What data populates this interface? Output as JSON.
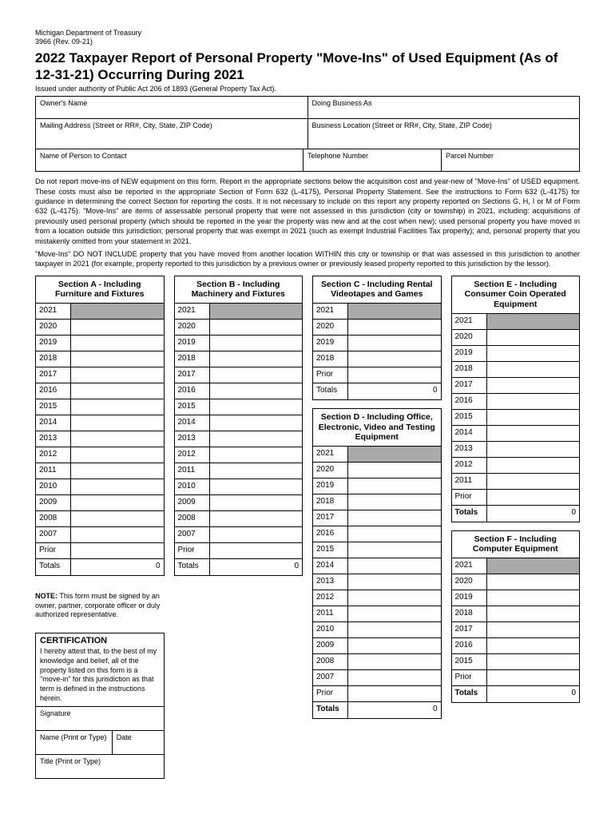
{
  "header": {
    "agency": "Michigan Department of Treasury",
    "form_ref": "3966 (Rev. 09-21)",
    "title": "2022 Taxpayer Report of Personal Property \"Move-Ins\" of Used Equipment (As of 12-31-21) Occurring During 2021",
    "issued": "Issued under authority of Public Act 206 of 1893 (General Property Tax Act)."
  },
  "info": {
    "owner_label": "Owner's Name",
    "dba_label": "Doing Business As",
    "mailing_label": "Mailing Address (Street or RR#, City, State, ZIP Code)",
    "business_loc_label": "Business Location (Street or RR#, City, State, ZIP Code)",
    "contact_label": "Name of Person to Contact",
    "phone_label": "Telephone Number",
    "parcel_label": "Parcel Number"
  },
  "instructions": {
    "p1": "Do not report move-ins of NEW equipment on this form. Report in the appropriate sections below the acquisition cost and year-new of \"Move-Ins\" of USED equipment. These costs must also be reported in the appropriate Section of Form 632 (L-4175), Personal Property Statement. See the instructions to Form 632 (L-4175) for guidance in determining the correct Section for reporting the costs. It is not necessary to include on this report any property reported on Sections G, H, I or M of Form 632 (L-4175). \"Move-Ins\" are items of assessable personal property that were not assessed in this jurisdiction (city or township) in 2021, including: acquisitions of previously used personal property (which should be reported in the year the property was new and at the cost when new); used personal property you have moved in from a location outside this jurisdiction; personal property that was exempt in 2021 (such as exempt Industrial Facilities Tax property); and, personal property that you mistakenly omitted from your statement in 2021.",
    "p2": "\"Move-Ins\" DO NOT INCLUDE property that you have moved from another location WITHIN this city or township or that was assessed in this jurisdiction to another taxpayer in 2021 (for example, property reported to this jurisdiction by a previous owner or previously leased property reported to this jurisdiction by the lessor)."
  },
  "labels": {
    "prior": "Prior",
    "totals": "Totals",
    "zero": "0"
  },
  "sections": {
    "a": {
      "title": "Section A - Including Furniture and Fixtures",
      "years": [
        "2021",
        "2020",
        "2019",
        "2018",
        "2017",
        "2016",
        "2015",
        "2014",
        "2013",
        "2012",
        "2011",
        "2010",
        "2009",
        "2008",
        "2007"
      ]
    },
    "b": {
      "title": "Section B - Including Machinery and Fixtures",
      "years": [
        "2021",
        "2020",
        "2019",
        "2018",
        "2017",
        "2016",
        "2015",
        "2014",
        "2013",
        "2012",
        "2011",
        "2010",
        "2009",
        "2008",
        "2007"
      ]
    },
    "c": {
      "title": "Section C - Including Rental Videotapes and Games",
      "years": [
        "2021",
        "2020",
        "2019",
        "2018"
      ]
    },
    "d": {
      "title": "Section D - Including Office, Electronic, Video and Testing Equipment",
      "years": [
        "2021",
        "2020",
        "2019",
        "2018",
        "2017",
        "2016",
        "2015",
        "2014",
        "2013",
        "2012",
        "2011",
        "2010",
        "2009",
        "2008",
        "2007"
      ]
    },
    "e": {
      "title": "Section E - Including Consumer Coin Operated Equipment",
      "years": [
        "2021",
        "2020",
        "2019",
        "2018",
        "2017",
        "2016",
        "2015",
        "2014",
        "2013",
        "2012",
        "2011"
      ]
    },
    "f": {
      "title": "Section F - Including Computer Equipment",
      "years": [
        "2021",
        "2020",
        "2019",
        "2018",
        "2017",
        "2016",
        "2015"
      ]
    }
  },
  "note": {
    "bold": "NOTE:",
    "text": " This form must be signed by an owner, partner, corporate officer or duly authorized representative."
  },
  "cert": {
    "title": "CERTIFICATION",
    "text": "I hereby attest that, to the best of my knowledge and belief, all of the property listed on this form is a \"move-in\" for this jurisdiction as that term is defined in the instructions herein.",
    "sig": "Signature",
    "name": "Name (Print or Type)",
    "date": "Date",
    "title_field": "Title (Print or Type)"
  }
}
